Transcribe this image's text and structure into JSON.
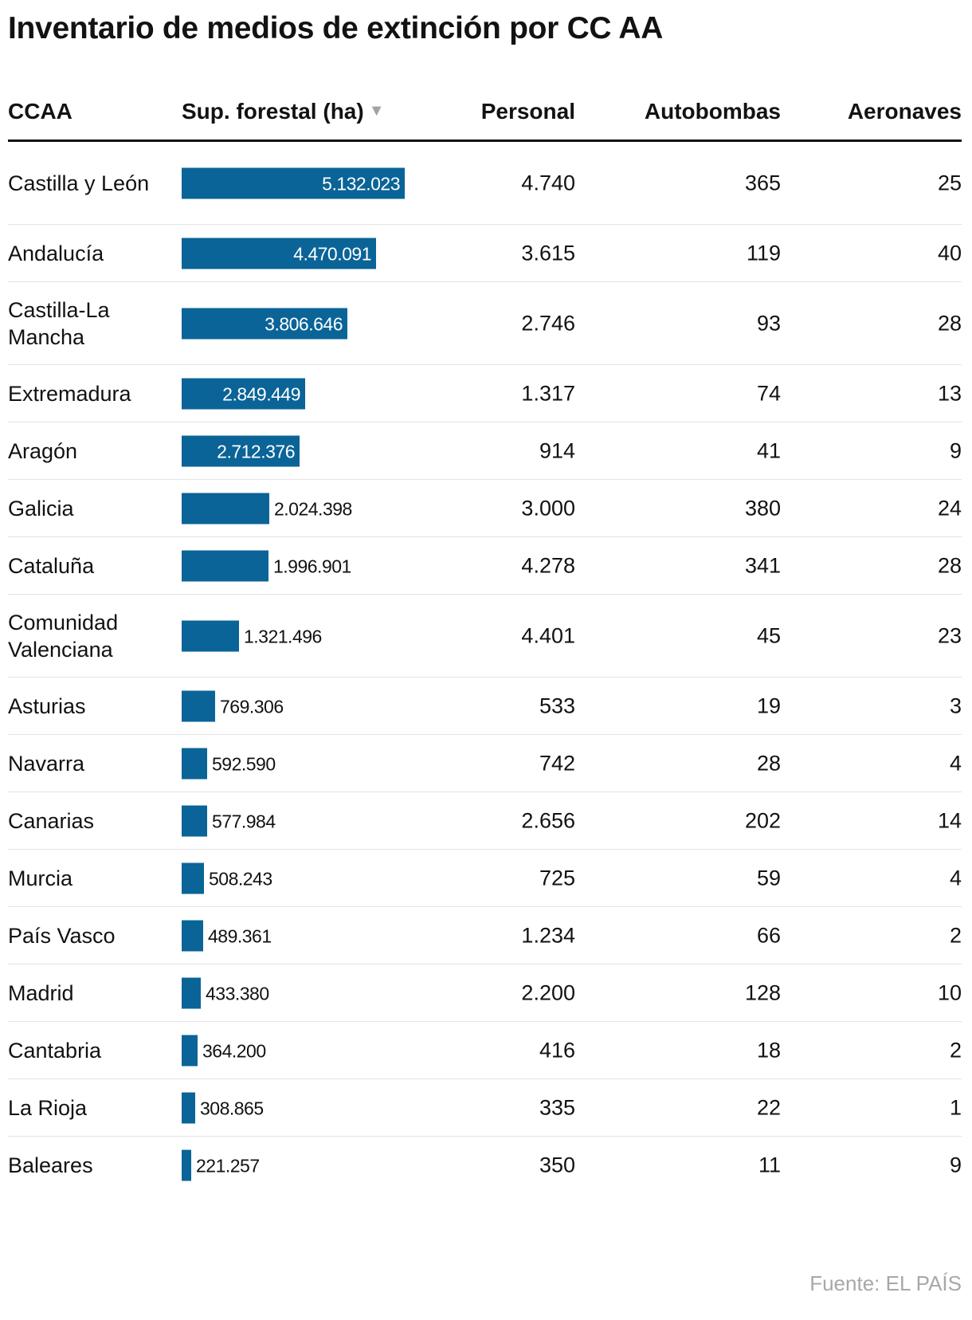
{
  "title": "Inventario de medios de extinción por CC AA",
  "source": "Fuente: EL PAÍS",
  "colors": {
    "bar": "#0a6497",
    "text": "#121212",
    "muted": "#a8a8a8"
  },
  "chart_data": {
    "type": "table",
    "columns": [
      "CCAA",
      "Sup. forestal (ha)",
      "Personal",
      "Autobombas",
      "Aeronaves"
    ],
    "sort_icon": "sort-descending-icon",
    "sorted_by": "Sup. forestal (ha)",
    "rows": [
      {
        "ccaa": "Castilla y León",
        "sup": 5132023,
        "sup_label": "5.132.023",
        "personal": "4.740",
        "autobombas": "365",
        "aeronaves": "25"
      },
      {
        "ccaa": "Andalucía",
        "sup": 4470091,
        "sup_label": "4.470.091",
        "personal": "3.615",
        "autobombas": "119",
        "aeronaves": "40"
      },
      {
        "ccaa": "Castilla-La Mancha",
        "sup": 3806646,
        "sup_label": "3.806.646",
        "personal": "2.746",
        "autobombas": "93",
        "aeronaves": "28"
      },
      {
        "ccaa": "Extremadura",
        "sup": 2849449,
        "sup_label": "2.849.449",
        "personal": "1.317",
        "autobombas": "74",
        "aeronaves": "13"
      },
      {
        "ccaa": "Aragón",
        "sup": 2712376,
        "sup_label": "2.712.376",
        "personal": "914",
        "autobombas": "41",
        "aeronaves": "9"
      },
      {
        "ccaa": "Galicia",
        "sup": 2024398,
        "sup_label": "2.024.398",
        "personal": "3.000",
        "autobombas": "380",
        "aeronaves": "24"
      },
      {
        "ccaa": "Cataluña",
        "sup": 1996901,
        "sup_label": "1.996.901",
        "personal": "4.278",
        "autobombas": "341",
        "aeronaves": "28"
      },
      {
        "ccaa": "Comunidad Valenciana",
        "sup": 1321496,
        "sup_label": "1.321.496",
        "personal": "4.401",
        "autobombas": "45",
        "aeronaves": "23"
      },
      {
        "ccaa": "Asturias",
        "sup": 769306,
        "sup_label": "769.306",
        "personal": "533",
        "autobombas": "19",
        "aeronaves": "3"
      },
      {
        "ccaa": "Navarra",
        "sup": 592590,
        "sup_label": "592.590",
        "personal": "742",
        "autobombas": "28",
        "aeronaves": "4"
      },
      {
        "ccaa": "Canarias",
        "sup": 577984,
        "sup_label": "577.984",
        "personal": "2.656",
        "autobombas": "202",
        "aeronaves": "14"
      },
      {
        "ccaa": "Murcia",
        "sup": 508243,
        "sup_label": "508.243",
        "personal": "725",
        "autobombas": "59",
        "aeronaves": "4"
      },
      {
        "ccaa": "País Vasco",
        "sup": 489361,
        "sup_label": "489.361",
        "personal": "1.234",
        "autobombas": "66",
        "aeronaves": "2"
      },
      {
        "ccaa": "Madrid",
        "sup": 433380,
        "sup_label": "433.380",
        "personal": "2.200",
        "autobombas": "128",
        "aeronaves": "10"
      },
      {
        "ccaa": "Cantabria",
        "sup": 364200,
        "sup_label": "364.200",
        "personal": "416",
        "autobombas": "18",
        "aeronaves": "2"
      },
      {
        "ccaa": "La Rioja",
        "sup": 308865,
        "sup_label": "308.865",
        "personal": "335",
        "autobombas": "22",
        "aeronaves": "1"
      },
      {
        "ccaa": "Baleares",
        "sup": 221257,
        "sup_label": "221.257",
        "personal": "350",
        "autobombas": "11",
        "aeronaves": "9"
      }
    ]
  }
}
